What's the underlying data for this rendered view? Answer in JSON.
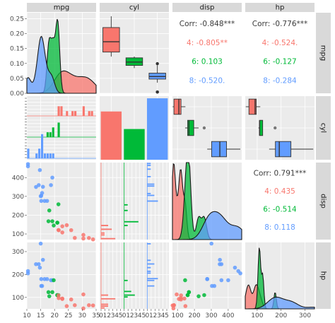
{
  "colors": {
    "c4": "#F8766D",
    "c6": "#00BA38",
    "c8": "#619CFF",
    "overall": "#3a3a3a"
  },
  "chart_data": {
    "type": "pairs",
    "variables": [
      "mpg",
      "cyl",
      "disp",
      "hp"
    ],
    "groups": [
      "4",
      "6",
      "8"
    ],
    "axes": {
      "mpg": {
        "range": [
          10,
          35
        ],
        "ticks": [
          10,
          15,
          20,
          25,
          30,
          35
        ],
        "tick_labels": [
          "10",
          "15",
          "20",
          "25",
          "30",
          "35"
        ]
      },
      "cyl_x": {
        "tick_labels": [
          "0",
          "1",
          "2",
          "3",
          "4",
          "5",
          "0",
          "1",
          "2",
          "3",
          "4",
          "5",
          "0",
          "1",
          "2",
          "3",
          "4",
          "5"
        ]
      },
      "disp": {
        "range": [
          70,
          480
        ],
        "ticks": [
          100,
          200,
          300,
          400
        ],
        "tick_labels": [
          "100",
          "200",
          "300",
          "400"
        ]
      },
      "hp": {
        "range": [
          50,
          340
        ],
        "ticks": [
          100,
          200,
          300
        ],
        "tick_labels": [
          "100",
          "200",
          "300"
        ]
      },
      "density_y": {
        "range": [
          0,
          0.27
        ],
        "ticks": [
          0,
          0.05,
          0.1,
          0.15,
          0.2,
          0.25
        ],
        "tick_labels": [
          "0.00",
          "0.05",
          "0.10",
          "0.15",
          "0.20",
          "0.25"
        ]
      }
    },
    "correlations": [
      {
        "pair": "mpg-disp",
        "overall": "Corr: -0.848***",
        "groups": [
          "4: -0.805**",
          "6: 0.103",
          "8: -0.520."
        ]
      },
      {
        "pair": "mpg-hp",
        "overall": "Corr: -0.776***",
        "groups": [
          "4: -0.524.",
          "6: -0.127",
          "8: -0.284"
        ]
      },
      {
        "pair": "disp-hp",
        "overall": "Corr: 0.791***",
        "groups": [
          "4: 0.435",
          "6: -0.514",
          "8: 0.118"
        ]
      }
    ],
    "cyl_counts": {
      "4": 11,
      "6": 7,
      "8": 14
    },
    "cars": [
      {
        "mpg": 21.0,
        "cyl": "6",
        "disp": 160,
        "hp": 110
      },
      {
        "mpg": 21.0,
        "cyl": "6",
        "disp": 160,
        "hp": 110
      },
      {
        "mpg": 22.8,
        "cyl": "4",
        "disp": 108,
        "hp": 93
      },
      {
        "mpg": 21.4,
        "cyl": "6",
        "disp": 258,
        "hp": 110
      },
      {
        "mpg": 18.7,
        "cyl": "8",
        "disp": 360,
        "hp": 175
      },
      {
        "mpg": 18.1,
        "cyl": "6",
        "disp": 225,
        "hp": 105
      },
      {
        "mpg": 14.3,
        "cyl": "8",
        "disp": 360,
        "hp": 245
      },
      {
        "mpg": 24.4,
        "cyl": "4",
        "disp": 146.7,
        "hp": 62
      },
      {
        "mpg": 22.8,
        "cyl": "4",
        "disp": 140.8,
        "hp": 95
      },
      {
        "mpg": 19.2,
        "cyl": "6",
        "disp": 167.6,
        "hp": 123
      },
      {
        "mpg": 17.8,
        "cyl": "6",
        "disp": 167.6,
        "hp": 123
      },
      {
        "mpg": 16.4,
        "cyl": "8",
        "disp": 275.8,
        "hp": 180
      },
      {
        "mpg": 17.3,
        "cyl": "8",
        "disp": 275.8,
        "hp": 180
      },
      {
        "mpg": 15.2,
        "cyl": "8",
        "disp": 275.8,
        "hp": 180
      },
      {
        "mpg": 10.4,
        "cyl": "8",
        "disp": 472,
        "hp": 205
      },
      {
        "mpg": 10.4,
        "cyl": "8",
        "disp": 460,
        "hp": 215
      },
      {
        "mpg": 14.7,
        "cyl": "8",
        "disp": 440,
        "hp": 230
      },
      {
        "mpg": 32.4,
        "cyl": "4",
        "disp": 78.7,
        "hp": 66
      },
      {
        "mpg": 30.4,
        "cyl": "4",
        "disp": 75.7,
        "hp": 52
      },
      {
        "mpg": 33.9,
        "cyl": "4",
        "disp": 71.1,
        "hp": 65
      },
      {
        "mpg": 21.5,
        "cyl": "4",
        "disp": 120.1,
        "hp": 97
      },
      {
        "mpg": 15.5,
        "cyl": "8",
        "disp": 318,
        "hp": 150
      },
      {
        "mpg": 15.2,
        "cyl": "8",
        "disp": 304,
        "hp": 150
      },
      {
        "mpg": 13.3,
        "cyl": "8",
        "disp": 350,
        "hp": 245
      },
      {
        "mpg": 19.2,
        "cyl": "8",
        "disp": 400,
        "hp": 175
      },
      {
        "mpg": 27.3,
        "cyl": "4",
        "disp": 79,
        "hp": 66
      },
      {
        "mpg": 26.0,
        "cyl": "4",
        "disp": 120.3,
        "hp": 91
      },
      {
        "mpg": 30.4,
        "cyl": "4",
        "disp": 95.1,
        "hp": 113
      },
      {
        "mpg": 15.8,
        "cyl": "8",
        "disp": 351,
        "hp": 264
      },
      {
        "mpg": 19.7,
        "cyl": "6",
        "disp": 145,
        "hp": 175
      },
      {
        "mpg": 15.0,
        "cyl": "8",
        "disp": 301,
        "hp": 335
      },
      {
        "mpg": 21.4,
        "cyl": "4",
        "disp": 121,
        "hp": 109
      }
    ]
  }
}
